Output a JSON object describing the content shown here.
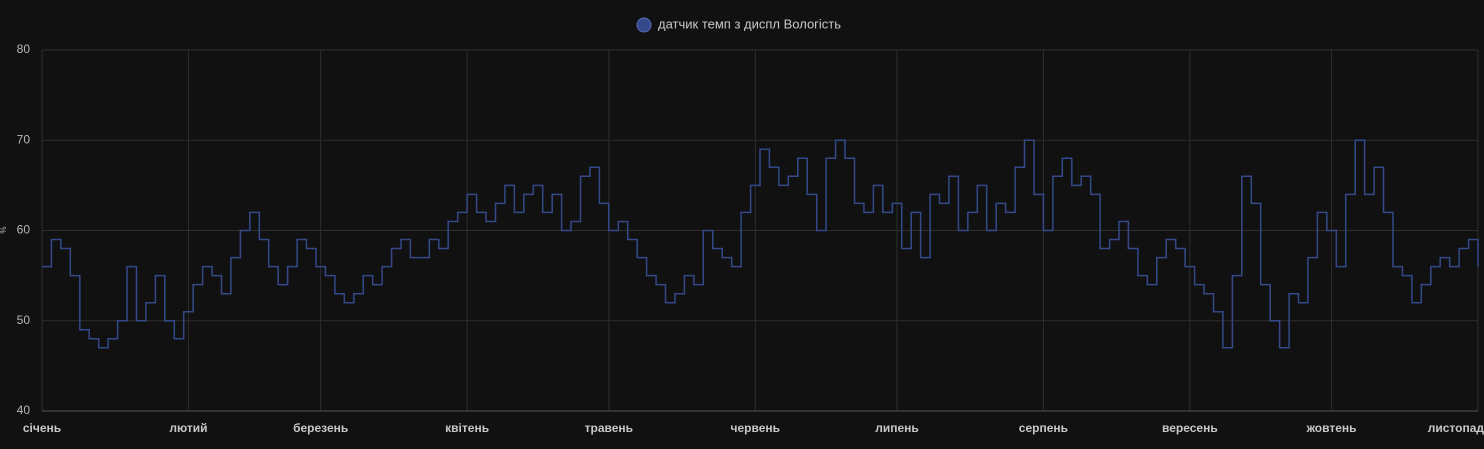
{
  "chart_data": {
    "type": "line",
    "y_label": "%",
    "x": [
      0,
      2,
      4,
      6,
      8,
      10,
      12,
      14,
      16,
      18,
      20,
      22,
      24,
      26,
      28,
      30,
      32,
      34,
      36,
      38,
      40,
      42,
      44,
      46,
      48,
      50,
      52,
      54,
      56,
      58,
      60,
      62,
      64,
      66,
      68,
      70,
      72,
      74,
      76,
      78,
      80,
      82,
      84,
      86,
      88,
      90,
      92,
      94,
      96,
      98,
      100,
      102,
      104,
      106,
      108,
      110,
      112,
      114,
      116,
      118,
      120,
      122,
      124,
      126,
      128,
      130,
      132,
      134,
      136,
      138,
      140,
      142,
      144,
      146,
      148,
      150,
      152,
      154,
      156,
      158,
      160,
      162,
      164,
      166,
      168,
      170,
      172,
      174,
      176,
      178,
      180,
      182,
      184,
      186,
      188,
      190,
      192,
      194,
      196,
      198,
      200,
      202,
      204,
      206,
      208,
      210,
      212,
      214,
      216,
      218,
      220,
      222,
      224,
      226,
      228,
      230,
      232,
      234,
      236,
      238,
      240,
      242,
      244,
      246,
      248,
      250,
      252,
      254,
      256,
      258,
      260,
      262,
      264,
      266,
      268,
      270,
      272,
      274,
      276,
      278,
      280,
      282,
      284,
      286,
      288,
      290,
      292,
      294,
      296,
      298,
      300,
      302,
      304
    ],
    "series": [
      {
        "name": "датчик темп з диспл Вологість",
        "color": "#34498a",
        "values": [
          56,
          59,
          58,
          55,
          49,
          48,
          47,
          48,
          50,
          56,
          50,
          52,
          55,
          50,
          48,
          51,
          54,
          56,
          55,
          53,
          57,
          60,
          62,
          59,
          56,
          54,
          56,
          59,
          58,
          56,
          55,
          53,
          52,
          53,
          55,
          54,
          56,
          58,
          59,
          57,
          57,
          59,
          58,
          61,
          62,
          64,
          62,
          61,
          63,
          65,
          62,
          64,
          65,
          62,
          64,
          60,
          61,
          66,
          67,
          63,
          60,
          61,
          59,
          57,
          55,
          54,
          52,
          53,
          55,
          54,
          60,
          58,
          57,
          56,
          62,
          65,
          69,
          67,
          65,
          66,
          68,
          64,
          60,
          68,
          70,
          68,
          63,
          62,
          65,
          62,
          63,
          58,
          62,
          57,
          64,
          63,
          66,
          60,
          62,
          65,
          60,
          63,
          62,
          67,
          70,
          64,
          60,
          66,
          68,
          65,
          66,
          64,
          58,
          59,
          61,
          58,
          55,
          54,
          57,
          59,
          58,
          56,
          54,
          53,
          51,
          47,
          55,
          66,
          63,
          54,
          50,
          47,
          53,
          52,
          57,
          62,
          60,
          56,
          64,
          70,
          64,
          67,
          62,
          56,
          55,
          52,
          54,
          56,
          57,
          56,
          58,
          59,
          56
        ]
      }
    ],
    "xlim": [
      0,
      304
    ],
    "xticks": [
      {
        "value": 0,
        "label": "січень"
      },
      {
        "value": 31,
        "label": "лютий"
      },
      {
        "value": 59,
        "label": "березень"
      },
      {
        "value": 90,
        "label": "квітень"
      },
      {
        "value": 120,
        "label": "травень"
      },
      {
        "value": 151,
        "label": "червень"
      },
      {
        "value": 181,
        "label": "липень"
      },
      {
        "value": 212,
        "label": "серпень"
      },
      {
        "value": 243,
        "label": "вересень"
      },
      {
        "value": 273,
        "label": "жовтень"
      },
      {
        "value": 304,
        "label": "листопад"
      }
    ],
    "ylim": [
      40,
      80
    ],
    "yticks": [
      40,
      50,
      60,
      70,
      80
    ],
    "grid": true
  }
}
